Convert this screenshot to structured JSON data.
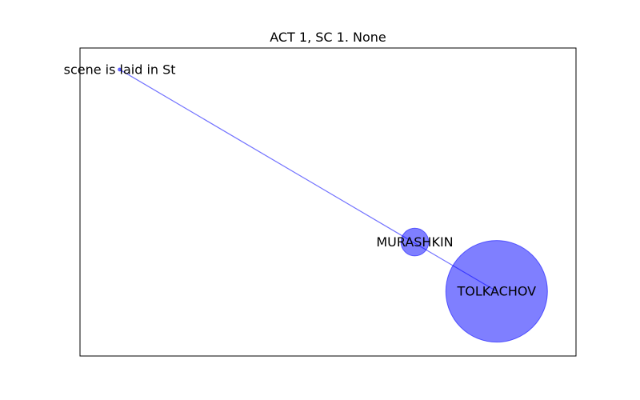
{
  "chart_data": {
    "type": "network",
    "title": "ACT 1, SC 1. None",
    "xlim": [
      0,
      10
    ],
    "ylim": [
      0,
      10
    ],
    "grid": false,
    "axes_ticks": false,
    "node_color": "#0000ff",
    "node_alpha": 0.5,
    "edge_color": "#0000ff",
    "nodes": [
      {
        "id": "scene",
        "label": "scene is laid in St",
        "x": 0.8,
        "y": 9.3,
        "size": 0.05
      },
      {
        "id": "murashkin",
        "label": "MURASHKIN",
        "x": 6.75,
        "y": 3.7,
        "size": 0.45
      },
      {
        "id": "tolkachov",
        "label": "TOLKACHOV",
        "x": 8.4,
        "y": 2.1,
        "size": 1.65
      }
    ],
    "edges": [
      {
        "source": "scene",
        "target": "tolkachov"
      }
    ]
  }
}
